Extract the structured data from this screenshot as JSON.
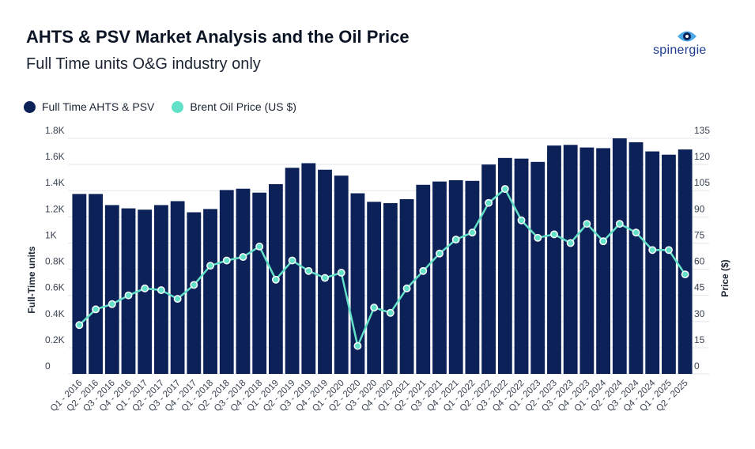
{
  "header": {
    "title": "AHTS & PSV Market Analysis and the Oil Price",
    "subtitle": "Full Time units O&G industry only"
  },
  "logo": {
    "text": "spinergie",
    "icon": "eye-icon"
  },
  "colors": {
    "bars": "#0b2158",
    "line": "#63e0c8",
    "grid": "#e3e6ea",
    "text": "#1b2433"
  },
  "chart_data": {
    "type": "bar",
    "categories": [
      "Q1 - 2016",
      "Q2 - 2016",
      "Q3 - 2016",
      "Q4 - 2016",
      "Q1 - 2017",
      "Q2 - 2017",
      "Q3 - 2017",
      "Q4 - 2017",
      "Q1 - 2018",
      "Q2 - 2018",
      "Q3 - 2018",
      "Q4 - 2018",
      "Q1 - 2019",
      "Q2 - 2019",
      "Q3 - 2019",
      "Q4 - 2019",
      "Q1 - 2020",
      "Q2 - 2020",
      "Q3 - 2020",
      "Q4 - 2020",
      "Q1 - 2021",
      "Q2 - 2021",
      "Q3 - 2021",
      "Q4 - 2021",
      "Q1 - 2022",
      "Q2 - 2022",
      "Q3 - 2022",
      "Q4 - 2022",
      "Q1 - 2023",
      "Q2 - 2023",
      "Q3 - 2023",
      "Q4 - 2023",
      "Q1 - 2024",
      "Q2 - 2024",
      "Q3 - 2024",
      "Q4 - 2024",
      "Q1 - 2025",
      "Q2 - 2025"
    ],
    "x_tick_labels": [
      "Q1 - 2016",
      "Q2 - 2016",
      "Q3 - 2016",
      "Q4 - 2016",
      "Q1 - 2017",
      "Q2 - 2017",
      "Q3 - 2017",
      "Q4 - 2017",
      "Q1 - 2018",
      "Q2 - 2018",
      "Q3 - 2018",
      "Q4 - 2018",
      "Q1 - 2019",
      "Q2 - 2019",
      "Q3 - 2019",
      "Q4 - 2019",
      "Q1 - 2020",
      "Q2 - 2020",
      "Q3 - 2020",
      "Q4 - 2020",
      "Q1 - 2021",
      "Q2 - 2021",
      "Q3 - 2021",
      "Q4 - 2021",
      "Q1 - 2022",
      "Q2 - 2022",
      "Q3 - 2022",
      "Q4 - 2022",
      "Q1 - 2023",
      "Q2 - 2023",
      "Q3 - 2023",
      "Q4 - 2023",
      "Q1 - 2024",
      "Q2 - 2024",
      "Q3 - 2024",
      "Q4 - 2024",
      "Q1 - 2025",
      "Q2 - 2025"
    ],
    "series": [
      {
        "name": "Full Time AHTS & PSV",
        "type": "bar",
        "axis": "left",
        "values": [
          1375,
          1375,
          1290,
          1265,
          1255,
          1290,
          1320,
          1235,
          1260,
          1405,
          1415,
          1385,
          1450,
          1575,
          1610,
          1560,
          1515,
          1380,
          1315,
          1305,
          1335,
          1445,
          1470,
          1480,
          1475,
          1600,
          1650,
          1645,
          1620,
          1745,
          1750,
          1730,
          1725,
          1800,
          1770,
          1700,
          1675,
          1715
        ]
      },
      {
        "name": "Brent Oil Price (US $)",
        "type": "line",
        "axis": "right",
        "values": [
          28,
          37,
          40,
          45,
          49,
          48,
          43,
          51,
          62,
          65,
          67,
          73,
          54,
          65,
          59,
          55,
          58,
          16,
          38,
          35,
          49,
          59,
          69,
          77,
          81,
          98,
          106,
          88,
          78,
          80,
          75,
          86,
          76,
          86,
          81,
          71,
          71,
          57
        ]
      }
    ],
    "y_left": {
      "label": "Full-Time units",
      "ticks": [
        "0",
        "0.2K",
        "0.4K",
        "0.6K",
        "0.8K",
        "1K",
        "1.2K",
        "1.4K",
        "1.6K",
        "1.8K"
      ],
      "ylim": [
        0,
        1800
      ]
    },
    "y_right": {
      "label": "Price ($)",
      "ticks": [
        "0",
        "15",
        "30",
        "45",
        "60",
        "75",
        "90",
        "105",
        "120",
        "135"
      ],
      "ylim": [
        0,
        135
      ]
    },
    "legend": "top-left",
    "grid": true
  }
}
